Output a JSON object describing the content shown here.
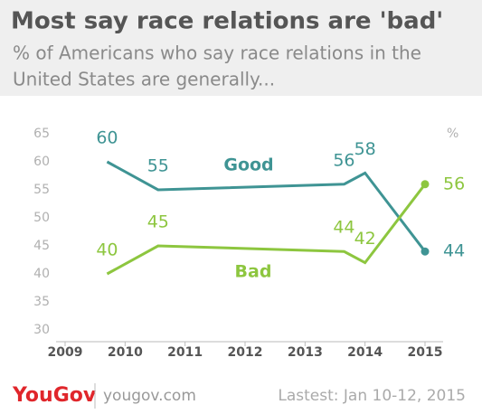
{
  "chart_data": {
    "type": "line",
    "title": "Most say race relations are 'bad'",
    "subtitle_lines": [
      "% of Americans who say race relations in the",
      "United States are generally..."
    ],
    "unit_label": "%",
    "x": [
      2009.7,
      2010.55,
      2013.65,
      2014.0,
      2015
    ],
    "series": [
      {
        "name": "Good",
        "color": "#3f9494",
        "values": [
          60,
          55,
          56,
          58,
          44
        ]
      },
      {
        "name": "Bad",
        "color": "#8dc63f",
        "values": [
          40,
          45,
          44,
          42,
          56
        ]
      }
    ],
    "xlim": [
      2009,
      2015
    ],
    "xticks": [
      2009,
      2010,
      2011,
      2012,
      2013,
      2014,
      2015
    ],
    "ylim": [
      30,
      65
    ],
    "yticks": [
      30,
      35,
      40,
      45,
      50,
      55,
      60,
      65
    ],
    "footer": {
      "brand": "YouGov",
      "site": "yougov.com",
      "note": "Lastest: Jan 10-12, 2015"
    }
  }
}
